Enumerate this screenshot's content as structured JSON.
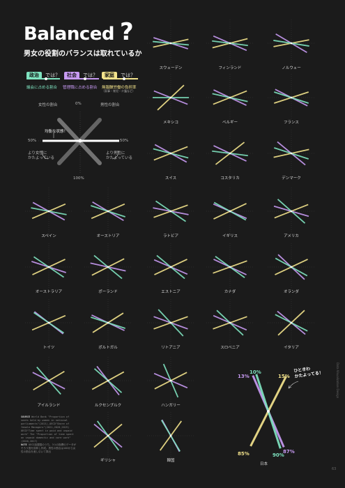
{
  "header": {
    "title": "Balanced",
    "qmark": "?",
    "subtitle": "男女の役割のバランスは取れているか"
  },
  "legend": {
    "tags": [
      {
        "tag": "政治",
        "suffix": "では？",
        "color": "#7fe3c0",
        "desc": "議会に占める割合",
        "sub": ""
      },
      {
        "tag": "社会",
        "suffix": "では？",
        "color": "#c79af2",
        "desc": "管理職に占める割合",
        "sub": ""
      },
      {
        "tag": "家庭",
        "suffix": "では？",
        "color": "#f3e38c",
        "desc": "無報酬労働の負担率",
        "sub": "（家事・育児・介護など）"
      }
    ],
    "female_share": "女性の割合",
    "male_share": "男性の割合",
    "zero": "0%",
    "fifty_left": "50%",
    "fifty_right": "50%",
    "hundred": "100%",
    "balanced": "均衡な状態！",
    "female_lean": "より女性に\nかたよっている",
    "male_lean": "より男性に\nかたよっている"
  },
  "japan": {
    "name": "日本",
    "labels": [
      "13%",
      "10%",
      "15%",
      "85%",
      "90%",
      "87%"
    ],
    "note": "ひときわ\nかたよってる！"
  },
  "colors": {
    "politics": "#7fe3c0",
    "management": "#c79af2",
    "home": "#f3e38c"
  },
  "chart_data": {
    "type": "line",
    "metric_note": "female share (%) per country for each indicator",
    "series_names": [
      "議会に占める割合",
      "管理職に占める割合",
      "無報酬労働の負担率"
    ],
    "countries": [
      {
        "name": "スウェーデン",
        "politics": 47,
        "management": 40,
        "home": 57
      },
      {
        "name": "フィンランド",
        "politics": 46,
        "management": 37,
        "home": 58
      },
      {
        "name": "ノルウェー",
        "politics": 45,
        "management": 33,
        "home": 56
      },
      {
        "name": "メキシコ",
        "politics": 50,
        "management": 38,
        "home": 74
      },
      {
        "name": "ベルギー",
        "politics": 43,
        "management": 36,
        "home": 62
      },
      {
        "name": "フランス",
        "politics": 40,
        "management": 35,
        "home": 60
      },
      {
        "name": "スイス",
        "politics": 42,
        "management": 34,
        "home": 62
      },
      {
        "name": "コスタリカ",
        "politics": 46,
        "management": 36,
        "home": 71
      },
      {
        "name": "デンマーク",
        "politics": 40,
        "management": 28,
        "home": 57
      },
      {
        "name": "スペイン",
        "politics": 44,
        "management": 34,
        "home": 63
      },
      {
        "name": "オーストリア",
        "politics": 40,
        "management": 33,
        "home": 63
      },
      {
        "name": "ラトビア",
        "politics": 31,
        "management": 44,
        "home": 61
      },
      {
        "name": "イギリス",
        "politics": 34,
        "management": 37,
        "home": 64
      },
      {
        "name": "アメリカ",
        "politics": 27,
        "management": 41,
        "home": 62
      },
      {
        "name": "オーストラリア",
        "politics": 31,
        "management": 40,
        "home": 64
      },
      {
        "name": "ポーランド",
        "politics": 28,
        "management": 43,
        "home": 65
      },
      {
        "name": "エストニア",
        "politics": 28,
        "management": 37,
        "home": 64
      },
      {
        "name": "カナダ",
        "politics": 30,
        "management": 36,
        "home": 61
      },
      {
        "name": "オランダ",
        "politics": 34,
        "management": 26,
        "home": 64
      },
      {
        "name": "トイツ",
        "politics": 31,
        "management": 29,
        "home": 63
      },
      {
        "name": "ポルトガル",
        "politics": 40,
        "management": 36,
        "home": 68
      },
      {
        "name": "リトアニア",
        "politics": 24,
        "management": 39,
        "home": 61
      },
      {
        "name": "スロベニア",
        "politics": 26,
        "management": 37,
        "home": 61
      },
      {
        "name": "イタリア",
        "politics": 35,
        "management": 28,
        "home": 74
      },
      {
        "name": "アイルランド",
        "politics": 23,
        "management": 35,
        "home": 67
      },
      {
        "name": "ルクセンブルク",
        "politics": 27,
        "management": 21,
        "home": 66
      },
      {
        "name": "ハンガリー",
        "politics": 13,
        "management": 37,
        "home": 65
      },
      {
        "name": "ギリシャ",
        "politics": 20,
        "management": 28,
        "home": 72
      },
      {
        "name": "韓国",
        "politics": 17,
        "management": 16,
        "home": 80
      },
      {
        "name": "日本",
        "politics": 10,
        "management": 13,
        "home": 85
      }
    ]
  },
  "source": {
    "label": "SOURCE",
    "text": "World Bank \"Proportion of seats held by women in national parliaments\"(2021),OECD\"Share of female Managers\"(2021,2020,2019) OECD\"Time spent in paid and unpaid work\" The \"Proportion of time spent on unpaid domestic and care work\"(2020,2017)",
    "note_label": "NOTE",
    "note": "OECD加盟国のうち、3つの指標のデータがそろう国を抜粋し作成。男性の割合は100から女性の割合を差し引いて算出"
  },
  "side_text": "Data Visualization Design",
  "page_number": "63"
}
